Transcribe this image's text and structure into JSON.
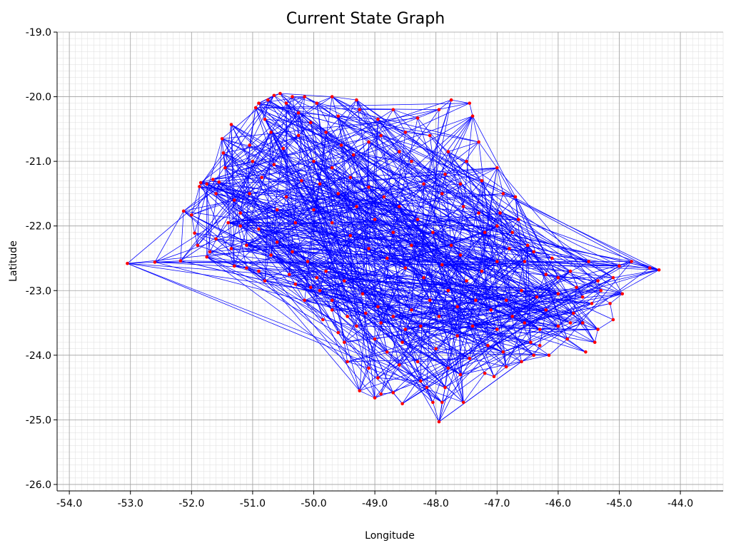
{
  "chart_data": {
    "type": "scatter",
    "title": "Current State Graph",
    "xlabel": "Longitude",
    "ylabel": "Latitude",
    "xlim": [
      -54.2,
      -43.3
    ],
    "ylim": [
      -26.1,
      -19.0
    ],
    "x_ticks": [
      -54.0,
      -53.0,
      -52.0,
      -51.0,
      -50.0,
      -49.0,
      -48.0,
      -47.0,
      -46.0,
      -45.0,
      -44.0
    ],
    "y_ticks": [
      -19.0,
      -20.0,
      -21.0,
      -22.0,
      -23.0,
      -24.0,
      -25.0,
      -26.0
    ],
    "x_tick_labels": [
      "-54.0",
      "-53.0",
      "-52.0",
      "-51.0",
      "-50.0",
      "-49.0",
      "-48.0",
      "-47.0",
      "-46.0",
      "-45.0",
      "-44.0"
    ],
    "y_tick_labels": [
      "-19.0",
      "-20.0",
      "-21.0",
      "-22.0",
      "-23.0",
      "-24.0",
      "-25.0",
      "-26.0"
    ],
    "grid": true,
    "minor_grid": true,
    "node_color": "#ff0000",
    "edge_color": "#0000ff",
    "nodes": [
      [
        -53.05,
        -22.58
      ],
      [
        -52.6,
        -22.56
      ],
      [
        -52.18,
        -22.54
      ],
      [
        -52.13,
        -21.77
      ],
      [
        -52.0,
        -21.83
      ],
      [
        -51.95,
        -22.11
      ],
      [
        -51.9,
        -22.3
      ],
      [
        -51.87,
        -21.39
      ],
      [
        -51.85,
        -21.33
      ],
      [
        -51.75,
        -21.35
      ],
      [
        -51.65,
        -21.28
      ],
      [
        -51.6,
        -21.5
      ],
      [
        -51.55,
        -21.32
      ],
      [
        -51.5,
        -20.65
      ],
      [
        -51.48,
        -20.87
      ],
      [
        -51.45,
        -21.1
      ],
      [
        -51.35,
        -20.43
      ],
      [
        -51.3,
        -21.6
      ],
      [
        -51.2,
        -22.0
      ],
      [
        -51.1,
        -22.3
      ],
      [
        -51.05,
        -20.75
      ],
      [
        -50.95,
        -20.17
      ],
      [
        -50.9,
        -20.1
      ],
      [
        -50.8,
        -20.35
      ],
      [
        -50.75,
        -20.05
      ],
      [
        -50.65,
        -19.98
      ],
      [
        -50.55,
        -19.95
      ],
      [
        -50.45,
        -20.1
      ],
      [
        -50.35,
        -20.0
      ],
      [
        -50.15,
        -20.0
      ],
      [
        -49.95,
        -20.1
      ],
      [
        -49.7,
        -20.0
      ],
      [
        -49.3,
        -20.05
      ],
      [
        -49.25,
        -20.2
      ],
      [
        -48.7,
        -20.2
      ],
      [
        -48.3,
        -20.33
      ],
      [
        -47.95,
        -20.2
      ],
      [
        -47.75,
        -20.05
      ],
      [
        -47.45,
        -20.1
      ],
      [
        -47.4,
        -20.3
      ],
      [
        -47.3,
        -20.7
      ],
      [
        -47.0,
        -21.1
      ],
      [
        -46.9,
        -21.5
      ],
      [
        -46.7,
        -21.55
      ],
      [
        -46.65,
        -21.9
      ],
      [
        -46.5,
        -22.3
      ],
      [
        -45.5,
        -22.55
      ],
      [
        -45.0,
        -22.62
      ],
      [
        -44.8,
        -22.55
      ],
      [
        -44.5,
        -22.65
      ],
      [
        -44.35,
        -22.68
      ],
      [
        -45.1,
        -22.8
      ],
      [
        -44.95,
        -23.05
      ],
      [
        -45.15,
        -23.2
      ],
      [
        -45.1,
        -23.45
      ],
      [
        -45.35,
        -23.6
      ],
      [
        -45.4,
        -23.8
      ],
      [
        -45.6,
        -23.5
      ],
      [
        -45.8,
        -23.5
      ],
      [
        -46.2,
        -23.3
      ],
      [
        -46.3,
        -23.85
      ],
      [
        -46.4,
        -24.0
      ],
      [
        -46.6,
        -24.1
      ],
      [
        -46.85,
        -24.18
      ],
      [
        -47.05,
        -24.33
      ],
      [
        -47.2,
        -24.28
      ],
      [
        -47.55,
        -24.73
      ],
      [
        -47.6,
        -24.3
      ],
      [
        -47.85,
        -24.5
      ],
      [
        -47.9,
        -24.73
      ],
      [
        -47.95,
        -25.03
      ],
      [
        -48.05,
        -24.73
      ],
      [
        -48.15,
        -24.5
      ],
      [
        -48.55,
        -24.75
      ],
      [
        -48.7,
        -24.58
      ],
      [
        -48.9,
        -24.6
      ],
      [
        -49.0,
        -24.66
      ],
      [
        -49.25,
        -24.55
      ],
      [
        -49.1,
        -24.2
      ],
      [
        -49.45,
        -24.1
      ],
      [
        -49.5,
        -23.8
      ],
      [
        -49.6,
        -23.65
      ],
      [
        -49.7,
        -23.3
      ],
      [
        -49.9,
        -23.0
      ],
      [
        -50.05,
        -22.95
      ],
      [
        -50.3,
        -22.9
      ],
      [
        -50.8,
        -22.85
      ],
      [
        -50.9,
        -22.7
      ],
      [
        -51.1,
        -22.65
      ],
      [
        -51.3,
        -22.62
      ],
      [
        -51.7,
        -22.4
      ],
      [
        -51.75,
        -22.48
      ],
      [
        -48.3,
        -24.1
      ],
      [
        -48.5,
        -23.6
      ],
      [
        -48.0,
        -23.9
      ],
      [
        -47.65,
        -23.7
      ],
      [
        -47.4,
        -23.55
      ],
      [
        -47.0,
        -23.6
      ],
      [
        -46.75,
        -23.4
      ],
      [
        -46.55,
        -23.5
      ],
      [
        -46.3,
        -23.6
      ],
      [
        -46.0,
        -23.55
      ],
      [
        -45.75,
        -23.35
      ],
      [
        -45.45,
        -23.2
      ],
      [
        -45.3,
        -23.0
      ],
      [
        -45.35,
        -22.85
      ],
      [
        -45.7,
        -22.95
      ],
      [
        -46.0,
        -22.8
      ],
      [
        -46.2,
        -22.75
      ],
      [
        -46.55,
        -22.55
      ],
      [
        -46.8,
        -22.35
      ],
      [
        -47.0,
        -22.0
      ],
      [
        -47.2,
        -22.1
      ],
      [
        -47.3,
        -21.8
      ],
      [
        -47.55,
        -21.7
      ],
      [
        -47.6,
        -21.35
      ],
      [
        -47.85,
        -21.2
      ],
      [
        -47.9,
        -21.5
      ],
      [
        -48.2,
        -21.35
      ],
      [
        -48.4,
        -21.0
      ],
      [
        -48.6,
        -20.85
      ],
      [
        -48.9,
        -20.6
      ],
      [
        -49.1,
        -20.7
      ],
      [
        -49.35,
        -20.9
      ],
      [
        -49.55,
        -20.75
      ],
      [
        -49.8,
        -20.55
      ],
      [
        -50.05,
        -20.4
      ],
      [
        -50.25,
        -20.6
      ],
      [
        -50.5,
        -20.8
      ],
      [
        -50.65,
        -21.05
      ],
      [
        -50.85,
        -21.25
      ],
      [
        -51.05,
        -21.5
      ],
      [
        -51.2,
        -21.8
      ],
      [
        -50.9,
        -22.05
      ],
      [
        -50.6,
        -22.25
      ],
      [
        -50.35,
        -22.4
      ],
      [
        -50.1,
        -22.55
      ],
      [
        -49.8,
        -22.7
      ],
      [
        -49.5,
        -22.85
      ],
      [
        -49.2,
        -23.05
      ],
      [
        -48.95,
        -23.25
      ],
      [
        -48.7,
        -23.4
      ],
      [
        -48.4,
        -23.3
      ],
      [
        -48.1,
        -23.15
      ],
      [
        -47.8,
        -23.0
      ],
      [
        -47.5,
        -22.85
      ],
      [
        -47.25,
        -22.7
      ],
      [
        -47.0,
        -22.55
      ],
      [
        -47.75,
        -22.3
      ],
      [
        -48.05,
        -22.1
      ],
      [
        -48.3,
        -21.9
      ],
      [
        -48.6,
        -21.7
      ],
      [
        -48.85,
        -21.55
      ],
      [
        -49.1,
        -21.4
      ],
      [
        -49.4,
        -21.25
      ],
      [
        -49.7,
        -21.1
      ],
      [
        -50.0,
        -21.0
      ],
      [
        -50.2,
        -21.3
      ],
      [
        -50.45,
        -21.55
      ],
      [
        -50.0,
        -21.75
      ],
      [
        -49.7,
        -21.95
      ],
      [
        -49.4,
        -22.15
      ],
      [
        -49.1,
        -22.35
      ],
      [
        -48.8,
        -22.5
      ],
      [
        -48.5,
        -22.65
      ],
      [
        -48.2,
        -22.8
      ],
      [
        -47.9,
        -22.6
      ],
      [
        -47.6,
        -22.45
      ],
      [
        -49.0,
        -21.9
      ],
      [
        -48.7,
        -22.1
      ],
      [
        -48.4,
        -22.3
      ],
      [
        -49.3,
        -21.7
      ],
      [
        -49.6,
        -21.5
      ],
      [
        -49.9,
        -21.35
      ],
      [
        -50.3,
        -21.95
      ],
      [
        -50.6,
        -21.75
      ],
      [
        -50.7,
        -22.45
      ],
      [
        -50.4,
        -22.75
      ],
      [
        -50.15,
        -23.15
      ],
      [
        -49.85,
        -23.45
      ],
      [
        -49.3,
        -23.55
      ],
      [
        -49.0,
        -23.75
      ],
      [
        -48.8,
        -23.95
      ],
      [
        -48.6,
        -24.15
      ],
      [
        -48.95,
        -24.35
      ],
      [
        -48.25,
        -24.4
      ],
      [
        -47.8,
        -24.2
      ],
      [
        -47.45,
        -24.05
      ],
      [
        -47.15,
        -23.85
      ],
      [
        -46.9,
        -23.95
      ],
      [
        -46.45,
        -23.8
      ],
      [
        -46.15,
        -24.0
      ],
      [
        -45.85,
        -23.75
      ],
      [
        -45.55,
        -23.95
      ],
      [
        -51.6,
        -22.2
      ],
      [
        -51.4,
        -21.95
      ],
      [
        -51.35,
        -22.35
      ],
      [
        -51.0,
        -21.0
      ],
      [
        -50.7,
        -20.55
      ],
      [
        -50.25,
        -20.25
      ],
      [
        -49.6,
        -20.3
      ],
      [
        -48.95,
        -20.35
      ],
      [
        -48.5,
        -20.55
      ],
      [
        -48.1,
        -20.6
      ],
      [
        -47.8,
        -20.85
      ],
      [
        -47.5,
        -21.0
      ],
      [
        -47.25,
        -21.3
      ],
      [
        -46.95,
        -21.8
      ],
      [
        -46.75,
        -22.1
      ],
      [
        -46.4,
        -22.4
      ],
      [
        -46.1,
        -22.5
      ],
      [
        -45.8,
        -22.7
      ],
      [
        -45.6,
        -23.1
      ],
      [
        -46.0,
        -23.05
      ],
      [
        -46.35,
        -23.1
      ],
      [
        -46.6,
        -23.0
      ],
      [
        -46.85,
        -23.15
      ],
      [
        -47.1,
        -23.3
      ],
      [
        -47.35,
        -23.15
      ],
      [
        -47.65,
        -23.25
      ],
      [
        -47.95,
        -23.4
      ],
      [
        -48.25,
        -23.55
      ],
      [
        -48.55,
        -23.8
      ],
      [
        -48.9,
        -23.5
      ],
      [
        -49.15,
        -23.35
      ],
      [
        -49.45,
        -23.4
      ],
      [
        -49.7,
        -23.15
      ],
      [
        -49.95,
        -22.8
      ]
    ]
  }
}
